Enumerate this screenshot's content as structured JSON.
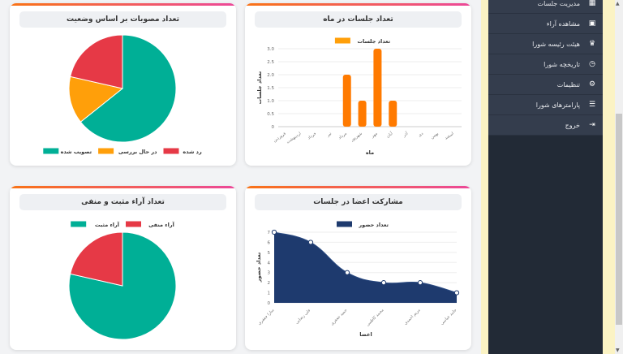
{
  "sidebar": {
    "items": [
      {
        "label": "مدیریت جلسات",
        "icon": "calendar-icon"
      },
      {
        "label": "مشاهده آراء",
        "icon": "chart-icon"
      },
      {
        "label": "هیئت رئیسه شورا",
        "icon": "crown-icon"
      },
      {
        "label": "تاریخچه شورا",
        "icon": "clock-icon"
      },
      {
        "label": "تنظیمات",
        "icon": "gears-icon"
      },
      {
        "label": "پارامترهای شورا",
        "icon": "sliders-icon"
      },
      {
        "label": "خروج",
        "icon": "logout-icon"
      }
    ]
  },
  "colors": {
    "teal": "#00af96",
    "orange": "#ff9f0a",
    "red": "#e63946",
    "navy": "#1e3a6e",
    "bar": "#ff7a00",
    "accent_from": "#f97316",
    "accent_to": "#ec4899"
  },
  "chart_data": [
    {
      "id": "status",
      "type": "pie",
      "title": "تعداد مصوبات بر اساس وضعیت",
      "legend": "bottom",
      "labels": [
        "تصویب شده",
        "در حال بررسی",
        "رد شده"
      ],
      "values": [
        9,
        2,
        3
      ],
      "colors": [
        "#00af96",
        "#ff9f0a",
        "#e63946"
      ]
    },
    {
      "id": "monthly",
      "type": "bar",
      "title": "تعداد جلسات در ماه",
      "legend": "top",
      "series": [
        {
          "name": "تعداد جلسات",
          "values": [
            0,
            0,
            0,
            0,
            2,
            1,
            3,
            1,
            0,
            0,
            0,
            0
          ]
        }
      ],
      "categories": [
        "فروردین",
        "اردیبهشت",
        "خرداد",
        "تیر",
        "مرداد",
        "شهریور",
        "مهر",
        "آبان",
        "آذر",
        "دی",
        "بهمن",
        "اسفند"
      ],
      "xlabel": "ماه",
      "ylabel": "تعداد جلسات",
      "ylim": [
        0,
        3
      ],
      "yticks": [
        "0",
        "0.5",
        "1.0",
        "1.5",
        "2.0",
        "2.5",
        "3.0"
      ],
      "grid": true
    },
    {
      "id": "votes",
      "type": "pie",
      "title": "تعداد آراء مثبت و منفی",
      "legend": "top",
      "labels": [
        "آراء مثبت",
        "آراء منفی"
      ],
      "values": [
        11,
        3
      ],
      "colors": [
        "#00af96",
        "#e63946"
      ]
    },
    {
      "id": "attendance",
      "type": "area",
      "title": "مشارکت اعضا در جلسات",
      "legend": "top",
      "series": [
        {
          "name": "تعداد حضور",
          "values": [
            7,
            6,
            3,
            2,
            2,
            1
          ]
        }
      ],
      "categories": [
        "سارا جعفری",
        "علی رضایی",
        "حمید جعفری",
        "محمد کاظمی",
        "مریم احمدی",
        "حامد عباسی"
      ],
      "xlabel": "اعضا",
      "ylabel": "تعداد حضور",
      "ylim": [
        0,
        7
      ],
      "yticks": [
        "0",
        "1",
        "2",
        "3",
        "4",
        "5",
        "6",
        "7"
      ],
      "grid": true
    }
  ]
}
